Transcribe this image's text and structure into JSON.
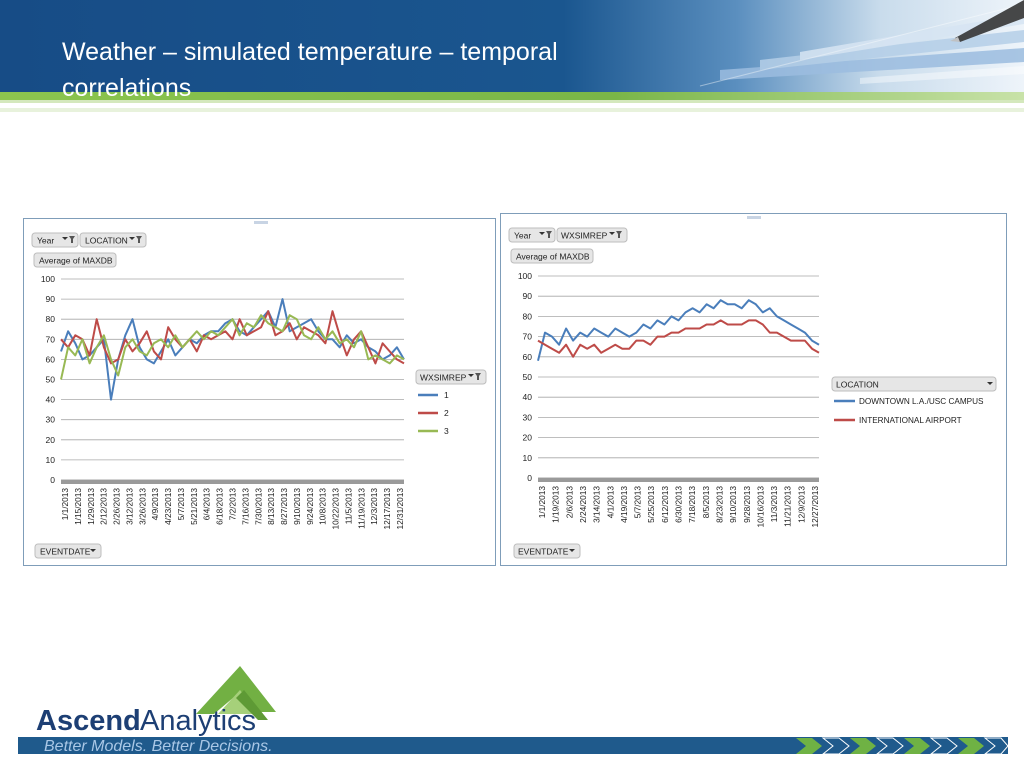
{
  "slide": {
    "title": "Weather – simulated temperature – temporal correlations",
    "title_lines": [
      "Weather – simulated temperature – temporal",
      "correlations"
    ]
  },
  "colors": {
    "header_blue": "#1f4e86",
    "green_bar": "#7ab648",
    "series_blue": "#4a7ebb",
    "series_red": "#be4b48",
    "series_green": "#98b954",
    "footer_blue": "#1f5a8c",
    "logo_navy": "#1d3f74",
    "logo_green": "#72b043"
  },
  "footer": {
    "logo_bold": "Ascend",
    "logo_light": "Analytics",
    "tagline": "Better Models. Better Decisions."
  },
  "charts": [
    {
      "filters": [
        "Year",
        "LOCATION"
      ],
      "value_field": "Average of MAXDB",
      "axis_field": "EVENTDATE",
      "legend_field": "WXSIMREP",
      "legend_items": [
        "1",
        "2",
        "3"
      ]
    },
    {
      "filters": [
        "Year",
        "WXSIMREP"
      ],
      "value_field": "Average of MAXDB",
      "axis_field": "EVENTDATE",
      "legend_field": "LOCATION",
      "legend_items": [
        "DOWNTOWN L.A./USC CAMPUS",
        "INTERNATIONAL AIRPORT"
      ]
    }
  ],
  "chart_data": [
    {
      "type": "line",
      "x_ticks": [
        "1/1/2013",
        "1/15/2013",
        "1/29/2013",
        "2/12/2013",
        "2/26/2013",
        "3/12/2013",
        "3/26/2013",
        "4/9/2013",
        "4/23/2013",
        "5/7/2013",
        "5/21/2013",
        "6/4/2013",
        "6/18/2013",
        "7/2/2013",
        "7/16/2013",
        "7/30/2013",
        "8/13/2013",
        "8/27/2013",
        "9/10/2013",
        "9/24/2013",
        "10/8/2013",
        "10/22/2013",
        "11/5/2013",
        "11/19/2013",
        "12/3/2013",
        "12/17/2013",
        "12/31/2013"
      ],
      "ylim": [
        0,
        100
      ],
      "y_ticks": [
        0,
        10,
        20,
        30,
        40,
        50,
        60,
        70,
        80,
        90,
        100
      ],
      "grid": true,
      "legend": "right",
      "series": [
        {
          "name": "1",
          "color": "#4a7ebb",
          "values": [
            64,
            74,
            68,
            60,
            62,
            66,
            70,
            40,
            60,
            72,
            80,
            66,
            60,
            58,
            64,
            70,
            62,
            66,
            70,
            68,
            72,
            74,
            74,
            78,
            80,
            74,
            72,
            76,
            80,
            84,
            76,
            90,
            74,
            76,
            78,
            80,
            74,
            70,
            70,
            66,
            72,
            68,
            70,
            66,
            64,
            60,
            62,
            66,
            60
          ]
        },
        {
          "name": "2",
          "color": "#be4b48",
          "values": [
            70,
            66,
            72,
            70,
            62,
            80,
            66,
            58,
            60,
            70,
            64,
            68,
            74,
            64,
            60,
            76,
            70,
            66,
            70,
            64,
            72,
            70,
            72,
            74,
            70,
            80,
            72,
            74,
            76,
            84,
            72,
            74,
            78,
            70,
            76,
            74,
            72,
            68,
            84,
            72,
            62,
            70,
            74,
            66,
            58,
            68,
            64,
            60,
            58
          ]
        },
        {
          "name": "3",
          "color": "#98b954",
          "values": [
            50,
            66,
            62,
            70,
            58,
            66,
            72,
            60,
            52,
            66,
            70,
            64,
            62,
            68,
            70,
            66,
            72,
            66,
            70,
            74,
            70,
            74,
            72,
            76,
            80,
            72,
            78,
            76,
            82,
            78,
            76,
            74,
            82,
            80,
            72,
            70,
            76,
            70,
            74,
            68,
            70,
            66,
            74,
            60,
            62,
            60,
            58,
            62,
            60
          ]
        }
      ]
    },
    {
      "type": "line",
      "x_ticks": [
        "1/1/2013",
        "1/19/2013",
        "2/6/2013",
        "2/24/2013",
        "3/14/2013",
        "4/1/2013",
        "4/19/2013",
        "5/7/2013",
        "5/25/2013",
        "6/12/2013",
        "6/30/2013",
        "7/18/2013",
        "8/5/2013",
        "8/23/2013",
        "9/10/2013",
        "9/28/2013",
        "10/16/2013",
        "11/3/2013",
        "11/21/2013",
        "12/9/2013",
        "12/27/2013"
      ],
      "ylim": [
        0,
        100
      ],
      "y_ticks": [
        0,
        10,
        20,
        30,
        40,
        50,
        60,
        70,
        80,
        90,
        100
      ],
      "grid": true,
      "legend": "right",
      "series": [
        {
          "name": "DOWNTOWN L.A./USC CAMPUS",
          "color": "#4a7ebb",
          "values": [
            58,
            72,
            70,
            66,
            74,
            68,
            72,
            70,
            74,
            72,
            70,
            74,
            72,
            70,
            72,
            76,
            74,
            78,
            76,
            80,
            78,
            82,
            84,
            82,
            86,
            84,
            88,
            86,
            86,
            84,
            88,
            86,
            82,
            84,
            80,
            78,
            76,
            74,
            72,
            68,
            66
          ]
        },
        {
          "name": "INTERNATIONAL AIRPORT",
          "color": "#be4b48",
          "values": [
            68,
            66,
            64,
            62,
            66,
            60,
            66,
            64,
            66,
            62,
            64,
            66,
            64,
            64,
            68,
            68,
            66,
            70,
            70,
            72,
            72,
            74,
            74,
            74,
            76,
            76,
            78,
            76,
            76,
            76,
            78,
            78,
            76,
            72,
            72,
            70,
            68,
            68,
            68,
            64,
            62
          ]
        }
      ]
    }
  ]
}
